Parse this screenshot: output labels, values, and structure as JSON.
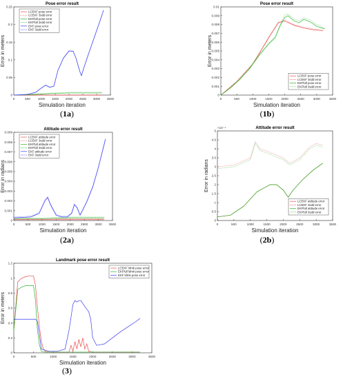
{
  "panels": [
    {
      "id": "1a",
      "caption_num": "1",
      "caption_letter": "a"
    },
    {
      "id": "1b",
      "caption_num": "1",
      "caption_letter": "b"
    },
    {
      "id": "2a",
      "caption_num": "2",
      "caption_letter": "a"
    },
    {
      "id": "2b",
      "caption_num": "2",
      "caption_letter": "b"
    },
    {
      "id": "3",
      "caption_num": "3",
      "caption_letter": ""
    }
  ],
  "colors": {
    "red": "#e8494c",
    "green": "#2db52b",
    "blue": "#3b3bf2",
    "axis": "#262626",
    "tick": "#262626",
    "legend_border": "#262626"
  },
  "chart_data": [
    {
      "panel": "1a",
      "type": "line",
      "title": "Pose error result",
      "xlabel": "Simulation iteration",
      "ylabel": "Error in meters",
      "xlim": [
        0,
        3500
      ],
      "ylim": [
        0,
        0.25
      ],
      "xticks": [
        "0",
        "500",
        "1000",
        "1500",
        "2000",
        "2500",
        "3000",
        "3500"
      ],
      "yticks": [
        "0",
        "0.05",
        "0.1",
        "0.15",
        "0.2",
        "0.25"
      ],
      "legend_position": "top-left",
      "series": [
        {
          "name": "LCEKF pose error",
          "color": "red",
          "dash": "solid",
          "x": [
            0,
            3200
          ],
          "y": [
            0,
            0
          ]
        },
        {
          "name": "LCEKF 3sdd error",
          "color": "red",
          "dash": "dotted",
          "x": [
            0,
            3200
          ],
          "y": [
            0.0002,
            0.0002
          ]
        },
        {
          "name": "EKFfull pose error",
          "color": "green",
          "dash": "solid",
          "x": [
            0,
            500,
            1000,
            1500,
            2000,
            2500,
            3200
          ],
          "y": [
            0,
            0.001,
            0.003,
            0.005,
            0.006,
            0.006,
            0.006
          ]
        },
        {
          "name": "EKFfull 3sdd error",
          "color": "green",
          "dash": "dotted",
          "x": [
            0,
            500,
            1000,
            1500,
            2000,
            2500,
            3200
          ],
          "y": [
            0,
            0.002,
            0.004,
            0.006,
            0.008,
            0.008,
            0.008
          ]
        },
        {
          "name": "EKF pose error",
          "color": "blue",
          "dash": "solid",
          "x": [
            0,
            500,
            800,
            1000,
            1150,
            1300,
            1450,
            1600,
            1800,
            2000,
            2150,
            2250,
            2400,
            2450,
            2550,
            2700,
            2900,
            3100,
            3250
          ],
          "y": [
            0,
            0.002,
            0.008,
            0.02,
            0.028,
            0.022,
            0.025,
            0.07,
            0.105,
            0.125,
            0.124,
            0.105,
            0.065,
            0.055,
            0.08,
            0.115,
            0.16,
            0.205,
            0.24
          ]
        },
        {
          "name": "EKF 3sdd error",
          "color": "blue",
          "dash": "dotted",
          "x": [
            0,
            500,
            800,
            1000,
            1150,
            1300,
            1450,
            1600,
            1800,
            2000,
            2150,
            2250,
            2400,
            2450,
            2550,
            2700,
            2900,
            3100,
            3250
          ],
          "y": [
            0,
            0.002,
            0.009,
            0.021,
            0.029,
            0.023,
            0.026,
            0.071,
            0.106,
            0.126,
            0.125,
            0.106,
            0.066,
            0.056,
            0.081,
            0.116,
            0.161,
            0.206,
            0.241
          ]
        }
      ]
    },
    {
      "panel": "1b",
      "type": "line",
      "title": "Pose error result",
      "xlabel": "Simulation iteration",
      "ylabel": "Error in meters",
      "xlim": [
        0,
        3500
      ],
      "ylim": [
        0,
        0.01
      ],
      "xticks": [
        "0",
        "500",
        "1000",
        "1500",
        "2000",
        "2500",
        "3000",
        "3500"
      ],
      "yticks": [
        "0",
        "0.001",
        "0.002",
        "0.003",
        "0.004",
        "0.005",
        "0.006",
        "0.007",
        "0.008",
        "0.009",
        "0.01"
      ],
      "legend_position": "bottom-right",
      "series": [
        {
          "name": "LCEKF pose error",
          "color": "red",
          "dash": "solid",
          "x": [
            0,
            500,
            1000,
            1500,
            1800,
            2000,
            2300,
            2600,
            2900,
            3200
          ],
          "y": [
            0,
            0.0015,
            0.0035,
            0.0065,
            0.0082,
            0.0084,
            0.0079,
            0.0076,
            0.0074,
            0.0073
          ]
        },
        {
          "name": "LCEKF 3sdd error",
          "color": "red",
          "dash": "dotted",
          "x": [
            0,
            500,
            1000,
            1500,
            1800,
            2000,
            2300,
            2600,
            2900,
            3200
          ],
          "y": [
            0,
            0.0016,
            0.0036,
            0.0066,
            0.0083,
            0.0085,
            0.008,
            0.0077,
            0.0075,
            0.0074
          ]
        },
        {
          "name": "EKFfull pose error",
          "color": "green",
          "dash": "solid",
          "x": [
            0,
            300,
            600,
            900,
            1200,
            1500,
            1700,
            1850,
            2000,
            2100,
            2300,
            2450,
            2600,
            2800,
            3000,
            3250
          ],
          "y": [
            0,
            0.0008,
            0.0018,
            0.003,
            0.0045,
            0.0058,
            0.0065,
            0.0078,
            0.0088,
            0.009,
            0.0084,
            0.0082,
            0.0086,
            0.0083,
            0.0078,
            0.0075
          ]
        },
        {
          "name": "EKFfull 3sdd error",
          "color": "green",
          "dash": "dotted",
          "x": [
            0,
            300,
            600,
            900,
            1200,
            1500,
            1700,
            1850,
            2000,
            2100,
            2300,
            2450,
            2600,
            2800,
            3000,
            3250
          ],
          "y": [
            0,
            0.0009,
            0.0019,
            0.0031,
            0.0046,
            0.0059,
            0.0066,
            0.0079,
            0.0091,
            0.0092,
            0.0086,
            0.0084,
            0.0088,
            0.0085,
            0.008,
            0.0076
          ]
        }
      ]
    },
    {
      "panel": "2a",
      "type": "line",
      "title": "Attitude error result",
      "xlabel": "Simulation iteration",
      "ylabel": "Error in radians",
      "xlim": [
        0,
        3500
      ],
      "ylim": [
        0,
        0.01
      ],
      "xticks": [
        "0",
        "500",
        "1000",
        "1500",
        "2000",
        "2500",
        "3000",
        "3500"
      ],
      "yticks": [
        "0",
        "0.001",
        "0.002",
        "0.003",
        "0.004",
        "0.005",
        "0.006",
        "0.007",
        "0.008",
        "0.009"
      ],
      "legend_position": "top-left",
      "series": [
        {
          "name": "LCEKF attitude error",
          "color": "red",
          "dash": "solid",
          "x": [
            0,
            3200
          ],
          "y": [
            0.0001,
            0.0001
          ]
        },
        {
          "name": "LCEKF 3sdd error",
          "color": "red",
          "dash": "dotted",
          "x": [
            0,
            3200
          ],
          "y": [
            0.0002,
            0.0002
          ]
        },
        {
          "name": "EKFfull attitude error",
          "color": "green",
          "dash": "solid",
          "x": [
            0,
            1000,
            2000,
            3200
          ],
          "y": [
            0.0002,
            0.0002,
            0.0003,
            0.0003
          ]
        },
        {
          "name": "EKFfull 3sdd error",
          "color": "green",
          "dash": "dotted",
          "x": [
            0,
            1000,
            2000,
            3200
          ],
          "y": [
            0.0003,
            0.0003,
            0.0004,
            0.0004
          ]
        },
        {
          "name": "EKF attitude error",
          "color": "blue",
          "dash": "solid",
          "x": [
            0,
            600,
            900,
            1100,
            1200,
            1300,
            1500,
            1700,
            1900,
            2050,
            2150,
            2250,
            2350,
            2450,
            2600,
            2800,
            3000,
            3250
          ],
          "y": [
            0.0003,
            0.0004,
            0.0008,
            0.0022,
            0.0026,
            0.0018,
            0.0006,
            0.0004,
            0.0004,
            0.0008,
            0.0018,
            0.0014,
            0.0006,
            0.0012,
            0.0022,
            0.0038,
            0.006,
            0.0092
          ]
        },
        {
          "name": "EKF 3sdd error",
          "color": "blue",
          "dash": "dotted",
          "x": [
            0,
            600,
            900,
            1100,
            1200,
            1300,
            1500,
            1700,
            1900,
            2050,
            2150,
            2250,
            2350,
            2450,
            2600,
            2800,
            3000,
            3250
          ],
          "y": [
            0.0004,
            0.0005,
            0.0009,
            0.0023,
            0.0027,
            0.0019,
            0.0007,
            0.0005,
            0.0005,
            0.0009,
            0.0019,
            0.0015,
            0.0007,
            0.0013,
            0.0023,
            0.0039,
            0.0061,
            0.0093
          ]
        }
      ]
    },
    {
      "panel": "2b",
      "type": "line",
      "title": "Attitude error result",
      "xlabel": "Simulation iteration",
      "ylabel": "Error in radians",
      "xlim": [
        0,
        3500
      ],
      "ylim": [
        0,
        0.0005
      ],
      "multiplier": "×10⁻⁴",
      "xticks": [
        "0",
        "500",
        "1000",
        "1500",
        "2000",
        "2500",
        "3000",
        "3500"
      ],
      "yticks": [
        "0",
        "0.5",
        "1",
        "1.5",
        "2",
        "2.5",
        "3",
        "3.5",
        "4",
        "4.5",
        "5"
      ],
      "legend_position": "bottom-right",
      "series": [
        {
          "name": "LCEKF attitude error",
          "color": "red",
          "dash": "solid",
          "x": [
            0,
            400,
            800,
            1200,
            1600,
            1800,
            2000,
            2150,
            2300,
            2600,
            2900,
            3200
          ],
          "y": [
            2e-05,
            3e-05,
            8e-05,
            0.00016,
            0.0002,
            0.0002,
            0.00017,
            0.00013,
            0.00017,
            0.00023,
            0.00028,
            0.00032
          ]
        },
        {
          "name": "LCEKF 3sdd error",
          "color": "red",
          "dash": "dotted",
          "x": [
            0,
            500,
            1000,
            1150,
            1300,
            1600,
            2000,
            2200,
            2500,
            2800,
            3000,
            3200
          ],
          "y": [
            0.0003,
            0.00031,
            0.00035,
            0.00044,
            0.0004,
            0.00038,
            0.00035,
            0.00032,
            0.00035,
            0.00041,
            0.00043,
            0.00042
          ]
        },
        {
          "name": "EKFfull attitude error",
          "color": "green",
          "dash": "solid",
          "x": [
            0,
            400,
            800,
            1200,
            1600,
            1800,
            2000,
            2150,
            2300,
            2600,
            2900,
            3200
          ],
          "y": [
            2e-05,
            3e-05,
            8e-05,
            0.00016,
            0.0002,
            0.0002,
            0.00017,
            0.00013,
            0.00017,
            0.00023,
            0.00028,
            0.00032
          ]
        },
        {
          "name": "EKFfull 3sdd error",
          "color": "green",
          "dash": "dotted",
          "x": [
            0,
            500,
            1000,
            1150,
            1300,
            1600,
            2000,
            2200,
            2500,
            2800,
            3000,
            3200
          ],
          "y": [
            0.00029,
            0.0003,
            0.00034,
            0.00043,
            0.00039,
            0.00037,
            0.00034,
            0.00031,
            0.00034,
            0.0004,
            0.00042,
            0.00041
          ]
        }
      ]
    },
    {
      "panel": "3",
      "type": "line",
      "title": "Landmark pose error result",
      "xlabel": "Simulation iteration",
      "ylabel": "Error in meters",
      "xlim": [
        0,
        3500
      ],
      "ylim": [
        0,
        1.2
      ],
      "xticks": [
        "0",
        "500",
        "1000",
        "1500",
        "2000",
        "2500",
        "3000",
        "3500"
      ],
      "yticks": [
        "0",
        "0.2",
        "0.4",
        "0.6",
        "0.8",
        "1",
        "1.2"
      ],
      "legend_position": "top-right",
      "series": [
        {
          "name": "LCEKF ldmk pose error",
          "color": "red",
          "dash": "solid",
          "x": [
            0,
            100,
            200,
            300,
            400,
            500,
            550,
            600,
            650,
            700,
            750,
            800,
            900,
            1000,
            1200,
            1400,
            1450,
            1500,
            1550,
            1600,
            1650,
            1700,
            1750,
            1800,
            1850,
            1900,
            2000,
            2500,
            3200
          ],
          "y": [
            0.3,
            0.95,
            1.0,
            1.02,
            1.03,
            1.03,
            0.9,
            0.6,
            0.35,
            0.15,
            0.05,
            0.02,
            0.01,
            0.01,
            0.01,
            0.01,
            0.1,
            0.02,
            0.15,
            0.05,
            0.18,
            0.08,
            0.2,
            0.05,
            0.12,
            0.02,
            0.01,
            0.01,
            0.01
          ]
        },
        {
          "name": "EKFfull ldmk pose error",
          "color": "green",
          "dash": "solid",
          "x": [
            0,
            100,
            200,
            300,
            400,
            500,
            550,
            600,
            650,
            700,
            800,
            1000,
            1500,
            2000,
            2500,
            3200
          ],
          "y": [
            0.3,
            0.85,
            0.88,
            0.9,
            0.9,
            0.9,
            0.7,
            0.3,
            0.1,
            0.02,
            0.01,
            0.01,
            0.01,
            0.01,
            0.01,
            0.01
          ]
        },
        {
          "name": "EKF ldmk pose error",
          "color": "blue",
          "dash": "solid",
          "x": [
            0,
            200,
            400,
            550,
            600,
            700,
            900,
            1100,
            1300,
            1400,
            1500,
            1550,
            1600,
            1650,
            1700,
            1800,
            1900,
            1950,
            2000,
            2100,
            2300,
            2500,
            2700,
            2900,
            3100,
            3200
          ],
          "y": [
            0.45,
            0.45,
            0.45,
            0.45,
            0.42,
            0.05,
            0.02,
            0.02,
            0.05,
            0.3,
            0.65,
            0.7,
            0.68,
            0.7,
            0.7,
            0.62,
            0.55,
            0.45,
            0.2,
            0.1,
            0.12,
            0.2,
            0.28,
            0.35,
            0.42,
            0.46
          ]
        }
      ]
    }
  ]
}
